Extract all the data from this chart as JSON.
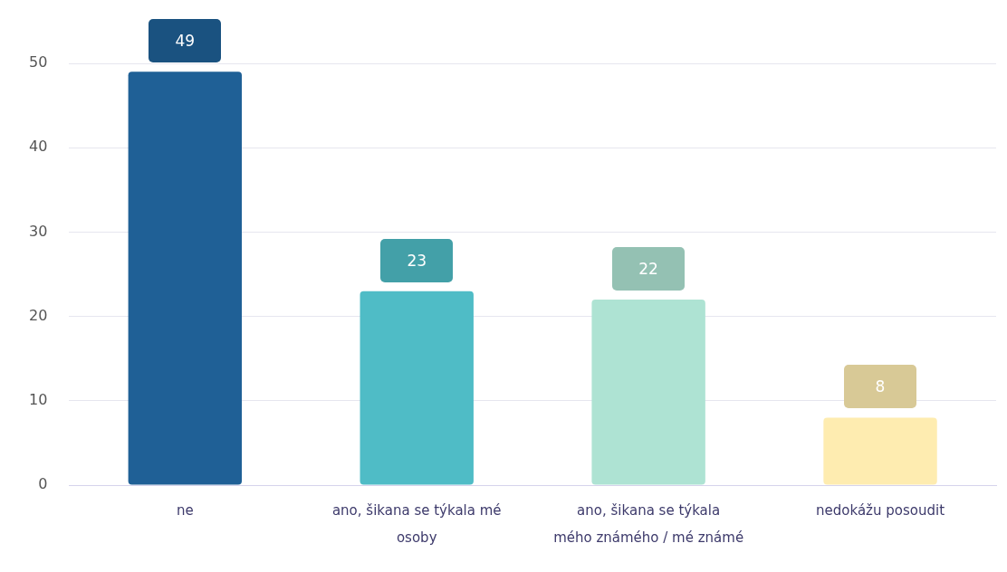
{
  "chart_data": {
    "type": "bar",
    "categories": [
      "ne",
      "ano, šikana se týkala mé osoby",
      "ano, šikana se týkala mého známého / mé známé",
      "nedokážu posoudit"
    ],
    "values": [
      49,
      23,
      22,
      8
    ],
    "colors": [
      "#1f6096",
      "#4fbcc6",
      "#aee3d3",
      "#feecb0"
    ],
    "ylim": [
      0,
      50
    ],
    "yticks": [
      0,
      10,
      20,
      30,
      40,
      50
    ],
    "grid": "y",
    "data_labels": true
  }
}
